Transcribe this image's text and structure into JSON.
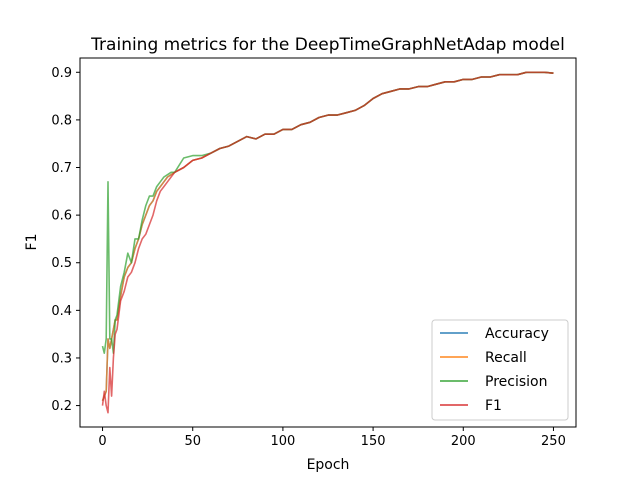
{
  "chart_data": {
    "type": "line",
    "title": "Training metrics for the DeepTimeGraphNetAdap model",
    "xlabel": "Epoch",
    "ylabel": "F1",
    "xlim": [
      -12.5,
      262.5
    ],
    "ylim": [
      0.155,
      0.93
    ],
    "xticks": [
      0,
      50,
      100,
      150,
      200,
      250
    ],
    "yticks": [
      0.2,
      0.3,
      0.4,
      0.5,
      0.6,
      0.7,
      0.8,
      0.9
    ],
    "grid": false,
    "legend_position": "lower-right",
    "series": [
      {
        "name": "Accuracy",
        "color": "#1f77b4",
        "opacity": 0.7,
        "x": [
          0,
          1,
          2,
          3,
          4,
          5,
          6,
          7,
          8,
          10,
          12,
          14,
          16,
          18,
          20,
          22,
          24,
          26,
          28,
          30,
          32,
          34,
          36,
          38,
          40,
          45,
          50,
          55,
          60,
          65,
          70,
          75,
          80,
          85,
          90,
          95,
          100,
          105,
          110,
          115,
          120,
          125,
          130,
          135,
          140,
          145,
          150,
          155,
          160,
          165,
          170,
          175,
          180,
          185,
          190,
          195,
          200,
          205,
          210,
          215,
          220,
          225,
          230,
          235,
          240,
          245,
          250
        ],
        "y": [
          0.21,
          0.22,
          0.23,
          0.34,
          0.32,
          0.34,
          0.36,
          0.38,
          0.38,
          0.43,
          0.47,
          0.49,
          0.5,
          0.53,
          0.55,
          0.58,
          0.6,
          0.62,
          0.63,
          0.65,
          0.66,
          0.67,
          0.68,
          0.685,
          0.69,
          0.7,
          0.715,
          0.72,
          0.73,
          0.74,
          0.745,
          0.755,
          0.765,
          0.76,
          0.77,
          0.77,
          0.78,
          0.78,
          0.79,
          0.795,
          0.805,
          0.81,
          0.81,
          0.815,
          0.82,
          0.83,
          0.845,
          0.855,
          0.86,
          0.865,
          0.865,
          0.87,
          0.87,
          0.875,
          0.88,
          0.88,
          0.885,
          0.885,
          0.89,
          0.89,
          0.895,
          0.895,
          0.895,
          0.9,
          0.9,
          0.9,
          0.898
        ]
      },
      {
        "name": "Recall",
        "color": "#ff7f0e",
        "opacity": 0.7,
        "x": [
          0,
          1,
          2,
          3,
          4,
          5,
          6,
          7,
          8,
          10,
          12,
          14,
          16,
          18,
          20,
          22,
          24,
          26,
          28,
          30,
          32,
          34,
          36,
          38,
          40,
          45,
          50,
          55,
          60,
          65,
          70,
          75,
          80,
          85,
          90,
          95,
          100,
          105,
          110,
          115,
          120,
          125,
          130,
          135,
          140,
          145,
          150,
          155,
          160,
          165,
          170,
          175,
          180,
          185,
          190,
          195,
          200,
          205,
          210,
          215,
          220,
          225,
          230,
          235,
          240,
          245,
          250
        ],
        "y": [
          0.21,
          0.22,
          0.23,
          0.34,
          0.32,
          0.34,
          0.36,
          0.38,
          0.38,
          0.43,
          0.47,
          0.49,
          0.5,
          0.53,
          0.55,
          0.58,
          0.6,
          0.62,
          0.63,
          0.65,
          0.66,
          0.67,
          0.68,
          0.685,
          0.69,
          0.7,
          0.715,
          0.72,
          0.73,
          0.74,
          0.745,
          0.755,
          0.765,
          0.76,
          0.77,
          0.77,
          0.78,
          0.78,
          0.79,
          0.795,
          0.805,
          0.81,
          0.81,
          0.815,
          0.82,
          0.83,
          0.845,
          0.855,
          0.86,
          0.865,
          0.865,
          0.87,
          0.87,
          0.875,
          0.88,
          0.88,
          0.885,
          0.885,
          0.89,
          0.89,
          0.895,
          0.895,
          0.895,
          0.9,
          0.9,
          0.9,
          0.898
        ]
      },
      {
        "name": "Precision",
        "color": "#2ca02c",
        "opacity": 0.7,
        "x": [
          0,
          1,
          2,
          3,
          4,
          5,
          6,
          7,
          8,
          10,
          12,
          14,
          16,
          18,
          20,
          22,
          24,
          26,
          28,
          30,
          32,
          34,
          36,
          38,
          40,
          45,
          50,
          55,
          60,
          65,
          70,
          75,
          80,
          85,
          90,
          95,
          100,
          105,
          110,
          115,
          120,
          125,
          130,
          135,
          140,
          145,
          150,
          155,
          160,
          165,
          170,
          175,
          180,
          185,
          190,
          195,
          200,
          205,
          210,
          215,
          220,
          225,
          230,
          235,
          240,
          245,
          250
        ],
        "y": [
          0.325,
          0.31,
          0.34,
          0.67,
          0.34,
          0.34,
          0.31,
          0.38,
          0.39,
          0.45,
          0.48,
          0.52,
          0.5,
          0.55,
          0.55,
          0.59,
          0.62,
          0.64,
          0.64,
          0.66,
          0.67,
          0.68,
          0.685,
          0.69,
          0.69,
          0.72,
          0.725,
          0.725,
          0.73,
          0.74,
          0.745,
          0.755,
          0.765,
          0.76,
          0.77,
          0.77,
          0.78,
          0.78,
          0.79,
          0.795,
          0.805,
          0.81,
          0.81,
          0.815,
          0.82,
          0.83,
          0.845,
          0.855,
          0.86,
          0.865,
          0.865,
          0.87,
          0.87,
          0.875,
          0.88,
          0.88,
          0.885,
          0.885,
          0.89,
          0.89,
          0.895,
          0.895,
          0.895,
          0.9,
          0.9,
          0.9,
          0.898
        ]
      },
      {
        "name": "F1",
        "color": "#d62728",
        "opacity": 0.7,
        "x": [
          0,
          1,
          2,
          3,
          4,
          5,
          6,
          7,
          8,
          10,
          12,
          14,
          16,
          18,
          20,
          22,
          24,
          26,
          28,
          30,
          32,
          34,
          36,
          38,
          40,
          45,
          50,
          55,
          60,
          65,
          70,
          75,
          80,
          85,
          90,
          95,
          100,
          105,
          110,
          115,
          120,
          125,
          130,
          135,
          140,
          145,
          150,
          155,
          160,
          165,
          170,
          175,
          180,
          185,
          190,
          195,
          200,
          205,
          210,
          215,
          220,
          225,
          230,
          235,
          240,
          245,
          250
        ],
        "y": [
          0.2,
          0.23,
          0.2,
          0.185,
          0.28,
          0.22,
          0.3,
          0.35,
          0.36,
          0.42,
          0.44,
          0.47,
          0.48,
          0.5,
          0.53,
          0.55,
          0.56,
          0.58,
          0.6,
          0.63,
          0.65,
          0.66,
          0.67,
          0.68,
          0.69,
          0.7,
          0.715,
          0.72,
          0.73,
          0.74,
          0.745,
          0.755,
          0.765,
          0.76,
          0.77,
          0.77,
          0.78,
          0.78,
          0.79,
          0.795,
          0.805,
          0.81,
          0.81,
          0.815,
          0.82,
          0.83,
          0.845,
          0.855,
          0.86,
          0.865,
          0.865,
          0.87,
          0.87,
          0.875,
          0.88,
          0.88,
          0.885,
          0.885,
          0.89,
          0.89,
          0.895,
          0.895,
          0.895,
          0.9,
          0.9,
          0.9,
          0.898
        ]
      }
    ]
  }
}
